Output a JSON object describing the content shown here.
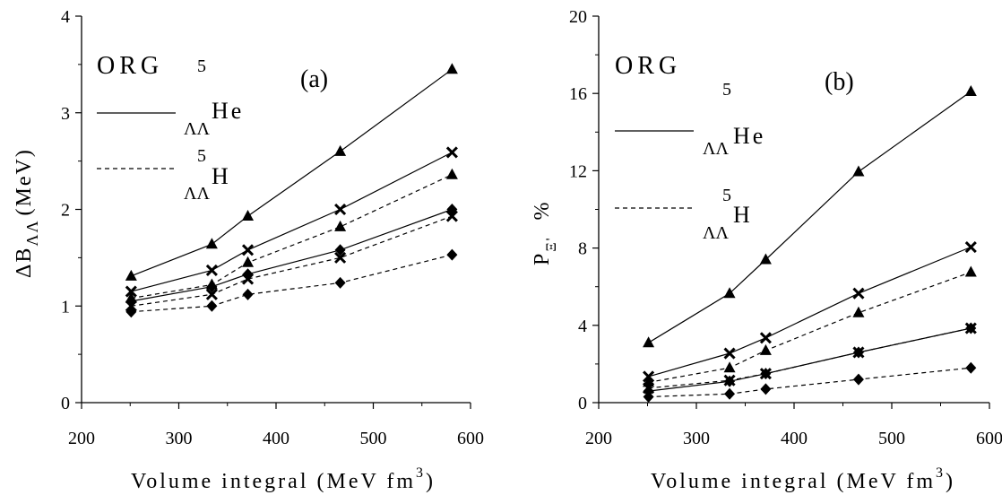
{
  "chart_data": [
    {
      "type": "line",
      "panel_label": "(a)",
      "model_label": "ORG",
      "xlabel": "Volume integral (MeV fm",
      "xlabel_sup": "3",
      "xlabel_end": ")",
      "ylabel": "ΔB",
      "ylabel_sub": "ΛΛ",
      "ylabel_end": "(MeV)",
      "xlim": [
        200,
        600
      ],
      "ylim": [
        0,
        4
      ],
      "xticks": [
        "200",
        "300",
        "400",
        "500",
        "600"
      ],
      "yticks": [
        "0",
        "1",
        "2",
        "3",
        "4"
      ],
      "legend": [
        {
          "style": "solid",
          "sup": "5",
          "sub": "ΛΛ",
          "label": "He"
        },
        {
          "style": "dashed",
          "sup": "5",
          "sub": "ΛΛ",
          "label": "H"
        }
      ],
      "x": [
        251,
        334,
        371,
        466,
        581
      ],
      "series": [
        {
          "style": "solid",
          "marker": "triangle",
          "values": [
            1.31,
            1.64,
            1.93,
            2.6,
            3.45
          ]
        },
        {
          "style": "solid",
          "marker": "cross",
          "values": [
            1.15,
            1.37,
            1.58,
            2.0,
            2.59
          ]
        },
        {
          "style": "solid",
          "marker": "diamond",
          "values": [
            1.05,
            1.2,
            1.33,
            1.58,
            2.0
          ]
        },
        {
          "style": "dashed",
          "marker": "triangle",
          "values": [
            1.08,
            1.22,
            1.45,
            1.82,
            2.36
          ]
        },
        {
          "style": "dashed",
          "marker": "cross",
          "values": [
            1.0,
            1.12,
            1.28,
            1.5,
            1.93
          ]
        },
        {
          "style": "dashed",
          "marker": "diamond",
          "values": [
            0.94,
            1.0,
            1.12,
            1.24,
            1.53
          ]
        }
      ]
    },
    {
      "type": "line",
      "panel_label": "(b)",
      "model_label": "ORG",
      "xlabel": "Volume integral (MeV fm",
      "xlabel_sup": "3",
      "xlabel_end": ")",
      "ylabel": "P",
      "ylabel_sub": "Ξ'",
      "ylabel_end": "%",
      "xlim": [
        200,
        600
      ],
      "ylim": [
        0,
        20
      ],
      "xticks": [
        "200",
        "300",
        "400",
        "500",
        "600"
      ],
      "yticks": [
        "0",
        "4",
        "8",
        "12",
        "16",
        "20"
      ],
      "legend": [
        {
          "style": "solid",
          "sup": "5",
          "sub": "ΛΛ",
          "label": "He"
        },
        {
          "style": "dashed",
          "sup": "5",
          "sub": "ΛΛ",
          "label": "H"
        }
      ],
      "x": [
        251,
        334,
        371,
        466,
        581
      ],
      "series": [
        {
          "style": "solid",
          "marker": "triangle",
          "values": [
            3.1,
            5.65,
            7.4,
            11.95,
            16.1
          ]
        },
        {
          "style": "solid",
          "marker": "cross",
          "values": [
            1.35,
            2.55,
            3.35,
            5.65,
            8.05
          ]
        },
        {
          "style": "solid",
          "marker": "diamond",
          "values": [
            0.6,
            1.1,
            1.5,
            2.6,
            3.85
          ]
        },
        {
          "style": "dashed",
          "marker": "triangle",
          "values": [
            1.05,
            1.8,
            2.7,
            4.65,
            6.75
          ]
        },
        {
          "style": "dashed",
          "marker": "cross",
          "values": [
            0.75,
            1.15,
            1.5,
            2.6,
            3.85
          ]
        },
        {
          "style": "dashed",
          "marker": "diamond",
          "values": [
            0.3,
            0.45,
            0.7,
            1.2,
            1.8
          ]
        }
      ]
    }
  ]
}
